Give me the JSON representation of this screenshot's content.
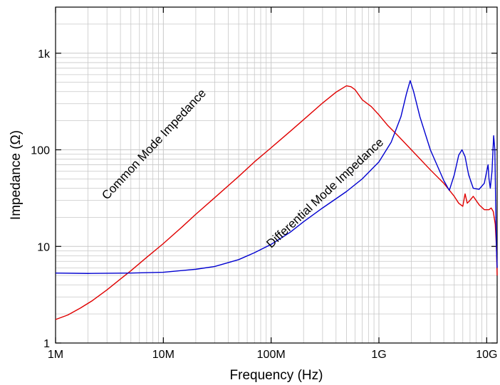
{
  "chart_data": {
    "type": "line",
    "xlabel": "Frequency (Hz)",
    "ylabel": "Impedance (Ω)",
    "x_scale": "log",
    "y_scale": "log",
    "xlim": [
      1000000,
      12500000000
    ],
    "ylim": [
      1,
      3000
    ],
    "grid": true,
    "x_tick_values": [
      1000000,
      10000000,
      100000000,
      1000000000,
      10000000000
    ],
    "x_tick_labels": [
      "1M",
      "10M",
      "100M",
      "1G",
      "10G"
    ],
    "y_tick_values": [
      1,
      10,
      100,
      1000
    ],
    "y_tick_labels": [
      "1",
      "10",
      "100",
      "1k"
    ],
    "series": [
      {
        "name": "Common Mode Impedance",
        "color": "#e00000",
        "x": [
          1000000,
          1300000,
          1700000,
          2200000,
          3000000,
          4000000,
          5000000,
          7000000,
          10000000,
          15000000,
          20000000,
          30000000,
          50000000,
          70000000,
          100000000,
          150000000,
          200000000,
          300000000,
          400000000,
          500000000,
          550000000,
          600000000,
          700000000,
          850000000,
          1000000000,
          1200000000,
          1500000000,
          2000000000,
          3000000000,
          4000000000,
          5000000000,
          5500000000,
          6000000000,
          6300000000,
          6600000000,
          7000000000,
          7500000000,
          8500000000,
          9500000000,
          10500000000,
          11000000000,
          11500000000,
          12000000000,
          12300000000,
          12500000000
        ],
        "values": [
          1.75,
          1.95,
          2.3,
          2.75,
          3.55,
          4.6,
          5.6,
          7.7,
          10.7,
          16,
          21.5,
          32,
          53,
          75,
          105,
          155,
          205,
          305,
          395,
          460,
          450,
          420,
          330,
          280,
          230,
          180,
          140,
          100,
          62,
          45,
          33,
          28,
          26,
          35,
          28,
          30,
          33,
          27,
          24,
          24,
          25,
          23,
          17,
          10,
          5
        ]
      },
      {
        "name": "Differential Mode Impedance",
        "color": "#0000d0",
        "x": [
          1000000,
          2000000,
          5000000,
          10000000,
          20000000,
          30000000,
          50000000,
          70000000,
          100000000,
          150000000,
          200000000,
          300000000,
          500000000,
          700000000,
          1000000000,
          1300000000,
          1600000000,
          1800000000,
          1950000000,
          2100000000,
          2400000000,
          3000000000,
          4000000000,
          4500000000,
          5000000000,
          5500000000,
          5900000000,
          6300000000,
          6800000000,
          7500000000,
          8500000000,
          9500000000,
          10000000000,
          10300000000,
          10500000000,
          10800000000,
          11200000000,
          11600000000,
          11900000000,
          12100000000,
          12300000000,
          12500000000
        ],
        "values": [
          5.3,
          5.25,
          5.3,
          5.4,
          5.8,
          6.2,
          7.3,
          8.6,
          10.5,
          14,
          18,
          25,
          37,
          50,
          75,
          120,
          220,
          380,
          520,
          400,
          220,
          100,
          48,
          38,
          55,
          88,
          100,
          85,
          55,
          40,
          39,
          45,
          60,
          70,
          50,
          40,
          60,
          140,
          100,
          30,
          10,
          6
        ]
      }
    ],
    "annotations": [
      {
        "text": "Common Mode Impedance",
        "x": 3000000,
        "y": 30,
        "rotation": -47
      },
      {
        "text": "Differential Mode Impedance",
        "x": 100000000,
        "y": 9.5,
        "rotation": -43
      }
    ]
  }
}
